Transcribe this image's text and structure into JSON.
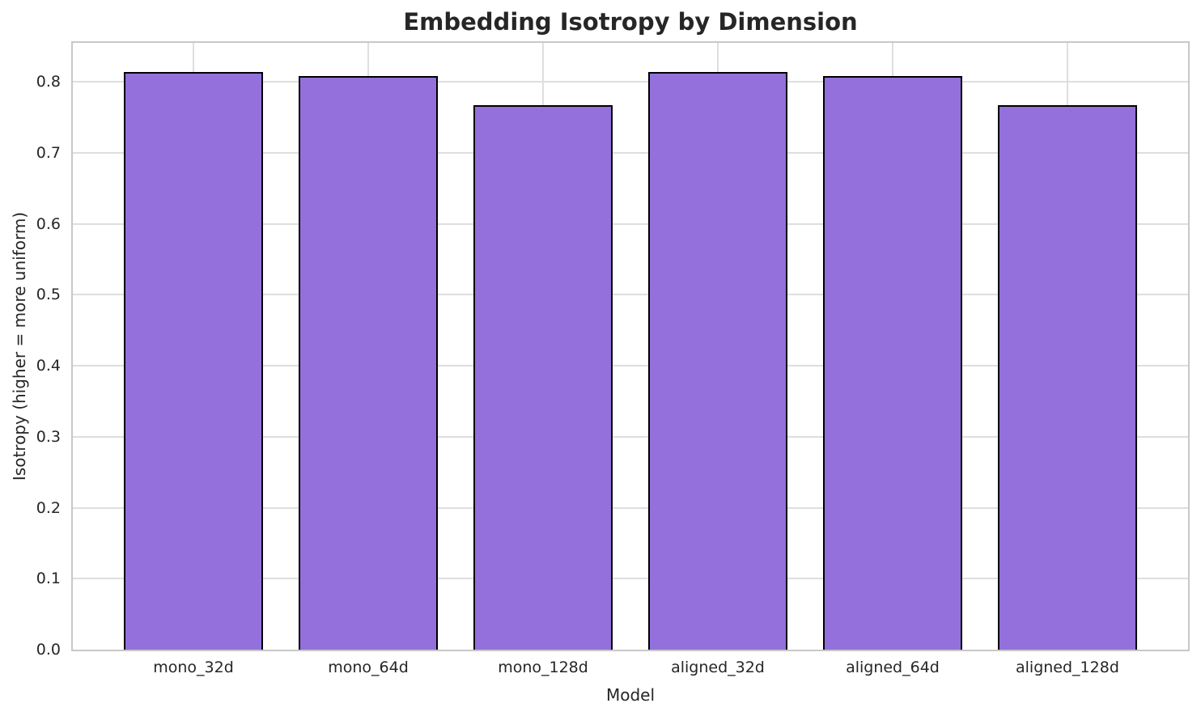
{
  "chart_data": {
    "type": "bar",
    "title": "Embedding Isotropy by Dimension",
    "xlabel": "Model",
    "ylabel": "Isotropy (higher = more uniform)",
    "categories": [
      "mono_32d",
      "mono_64d",
      "mono_128d",
      "aligned_32d",
      "aligned_64d",
      "aligned_128d"
    ],
    "values": [
      0.814,
      0.808,
      0.767,
      0.814,
      0.808,
      0.767
    ],
    "ylim": [
      0,
      0.855
    ],
    "ytick_labels": [
      "0.0",
      "0.1",
      "0.2",
      "0.3",
      "0.4",
      "0.5",
      "0.6",
      "0.7",
      "0.8"
    ],
    "grid": "on",
    "legend_position": "none",
    "colors": {
      "bar_fill": "#9370DB",
      "bar_edge": "#000000",
      "grid_line": "#dedede",
      "spine": "#c8c8c8",
      "text": "#262626",
      "background": "#ffffff"
    }
  }
}
